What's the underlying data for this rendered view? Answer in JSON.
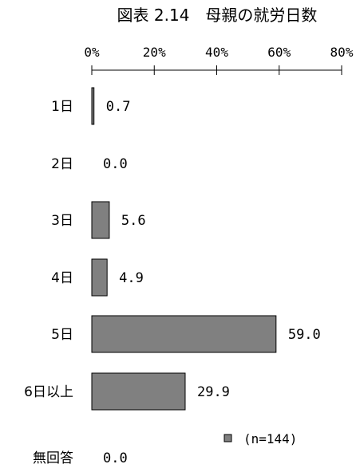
{
  "chart_data": {
    "type": "bar",
    "orientation": "horizontal",
    "title": "図表 2.14　母親の就労日数",
    "categories": [
      "1日",
      "2日",
      "3日",
      "4日",
      "5日",
      "6日以上",
      "無回答"
    ],
    "values": [
      0.7,
      0.0,
      5.6,
      4.9,
      59.0,
      29.9,
      0.0
    ],
    "value_labels": [
      "0.7",
      "0.0",
      "5.6",
      "4.9",
      "59.0",
      "29.9",
      "0.0"
    ],
    "xlim": [
      0,
      80
    ],
    "x_ticks": [
      "0%",
      "20%",
      "40%",
      "60%",
      "80%"
    ],
    "x_tick_values": [
      0,
      20,
      40,
      60,
      80
    ],
    "xlabel": "",
    "ylabel": "",
    "grid": false,
    "legend": {
      "label": "(n=144)",
      "position": "bottom-right"
    },
    "colors": {
      "bar_fill": "#808080",
      "bar_stroke": "#000000"
    }
  }
}
